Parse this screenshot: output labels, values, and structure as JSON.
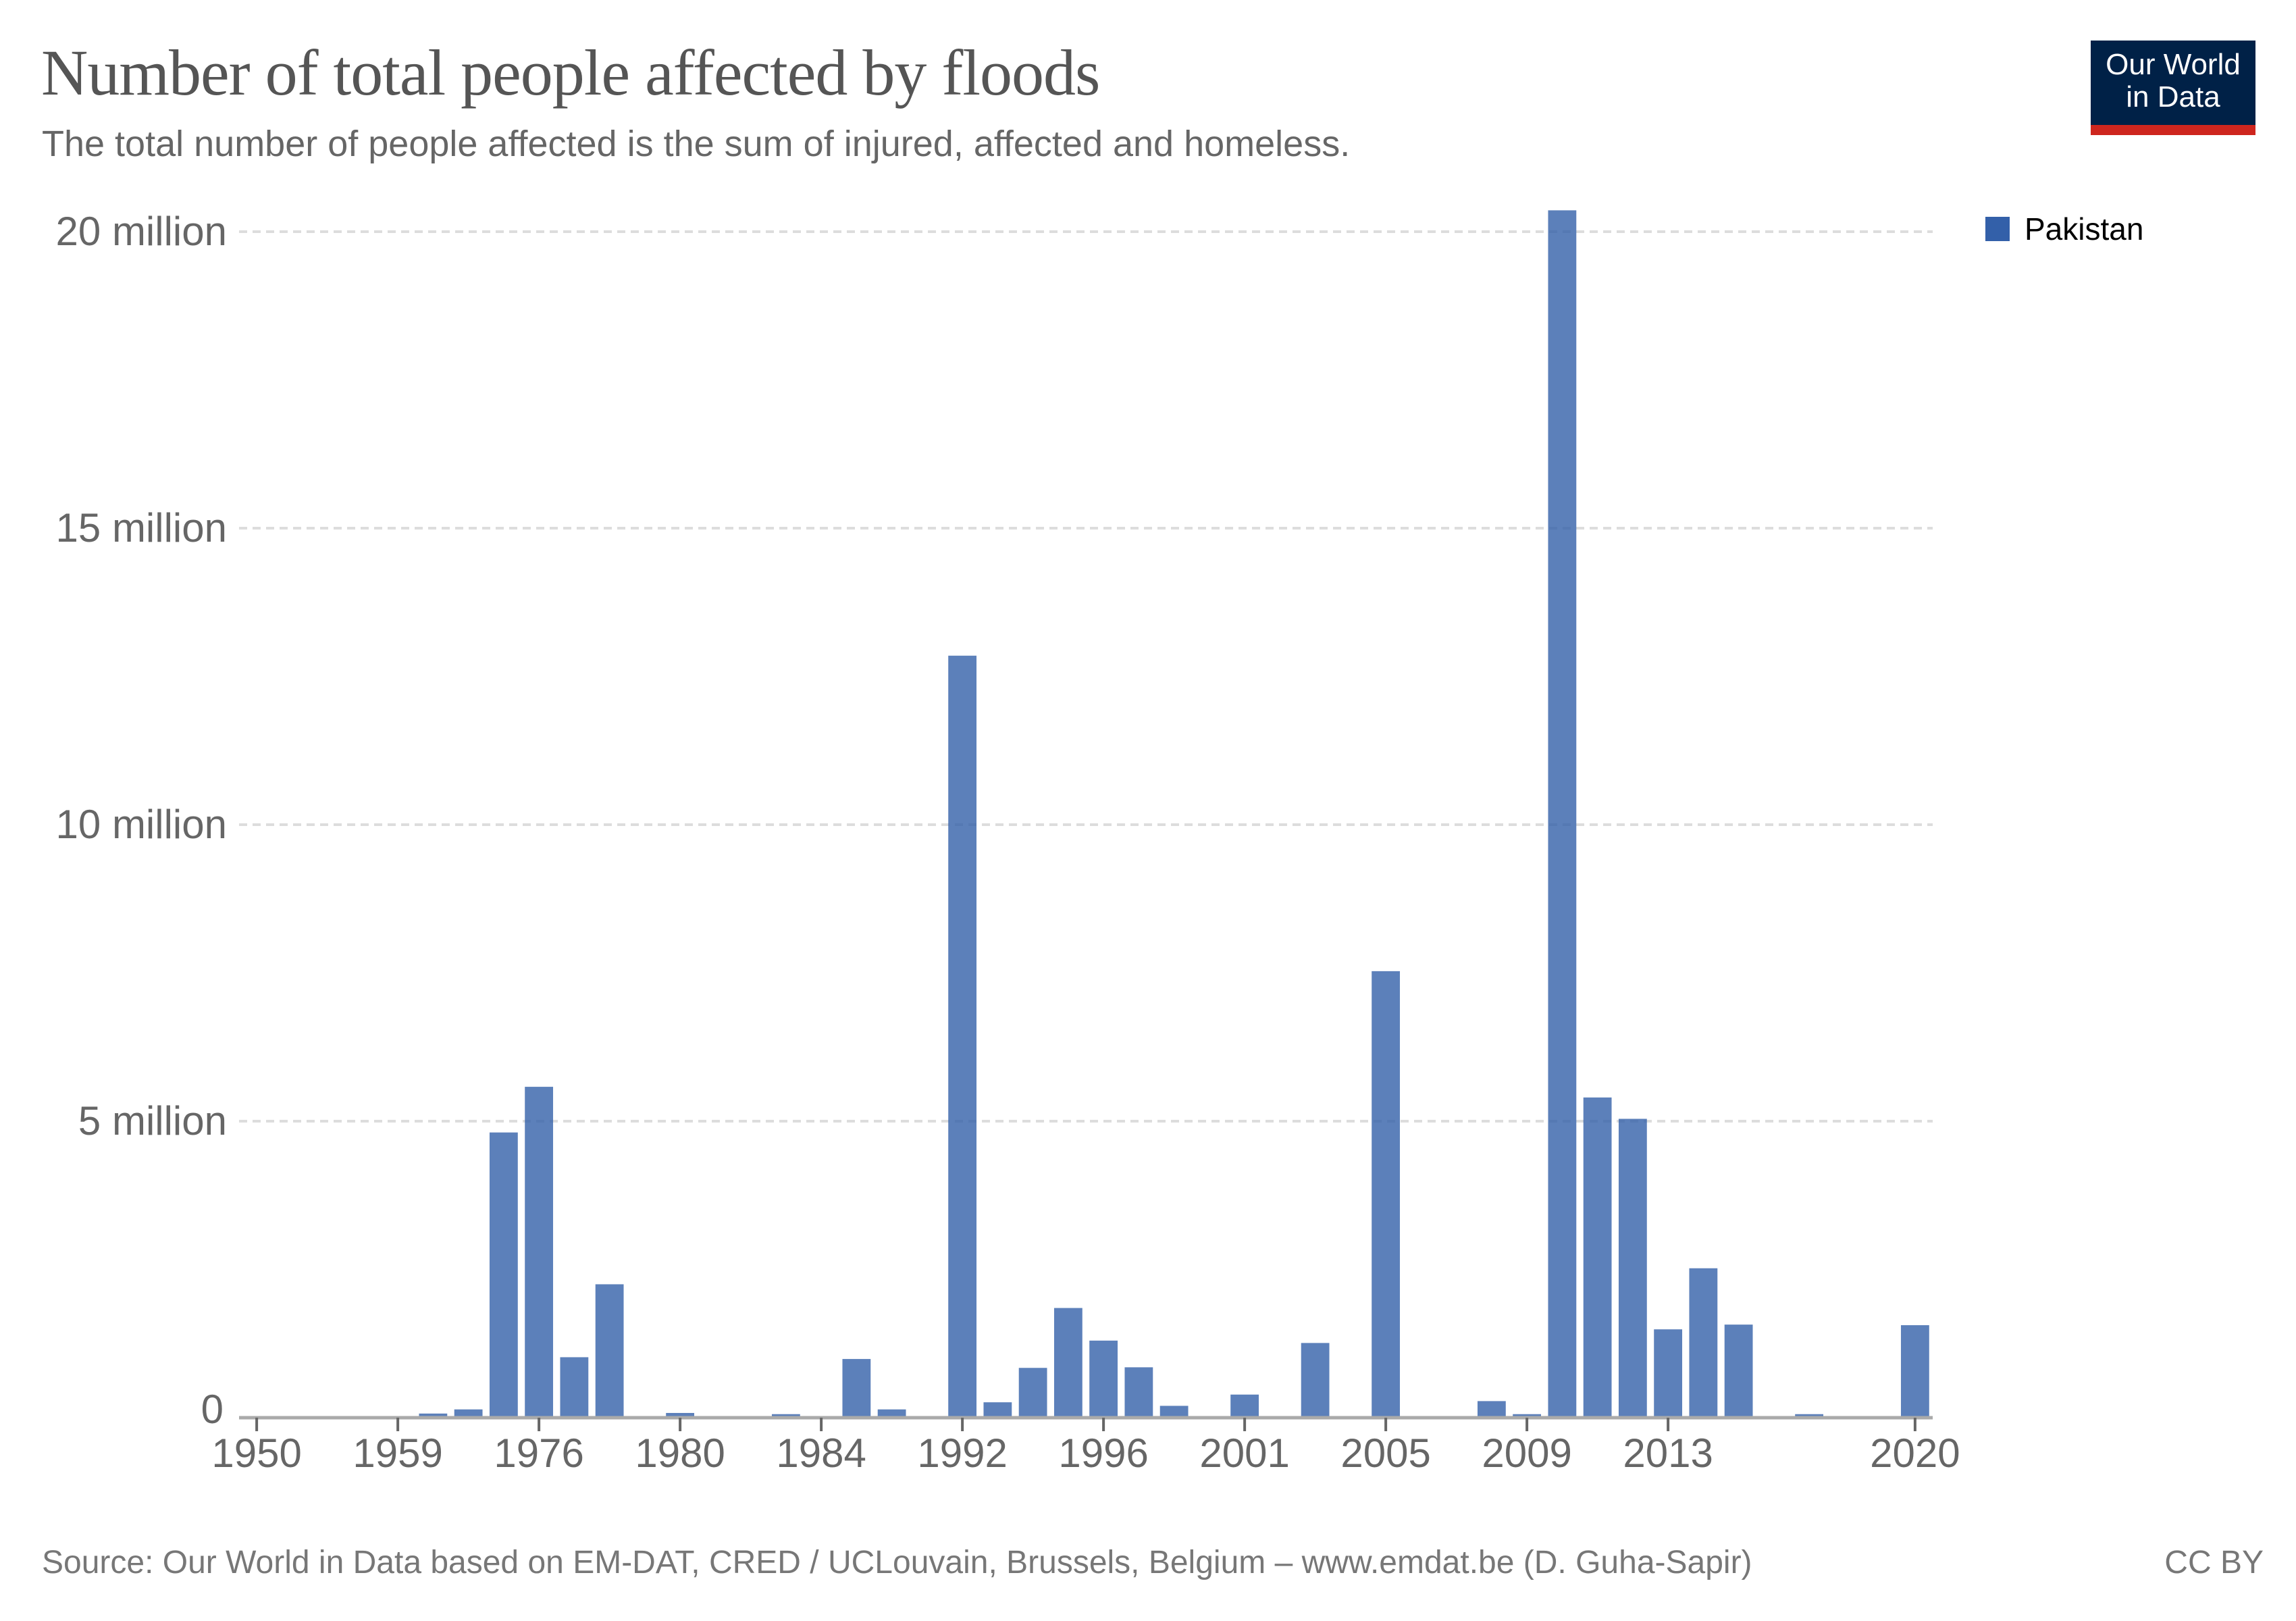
{
  "header": {
    "title": "Number of total people affected by floods",
    "subtitle": "The total number of people affected is the sum of injured, affected and homeless."
  },
  "logo": {
    "line1": "Our World",
    "line2": "in Data",
    "colors": {
      "background": "#002147",
      "stripe": "#ce261e"
    }
  },
  "footer": {
    "source": "Source: Our World in Data based on EM-DAT, CRED / UCLouvain, Brussels, Belgium – www.emdat.be (D. Guha-Sapir)",
    "license": "CC BY"
  },
  "chart_data": {
    "type": "bar",
    "title": "Number of total people affected by floods",
    "subtitle": "The total number of people affected is the sum of injured, affected and homeless.",
    "xlabel": "",
    "ylabel": "",
    "unit": "people",
    "ylim": [
      0,
      20000000
    ],
    "yticks": [
      {
        "value": 0,
        "label": "0"
      },
      {
        "value": 5000000,
        "label": "5 million"
      },
      {
        "value": 10000000,
        "label": "10 million"
      },
      {
        "value": 15000000,
        "label": "15 million"
      },
      {
        "value": 20000000,
        "label": "20 million"
      }
    ],
    "grid": "horizontal-dashed",
    "legend_position": "top-right",
    "xtick_labels": [
      "1950",
      "1959",
      "1976",
      "1980",
      "1984",
      "1992",
      "1996",
      "2001",
      "2005",
      "2009",
      "2013",
      "2020"
    ],
    "categories": [
      "1950",
      "1954",
      "1955",
      "1956",
      "1959",
      "1965",
      "1970",
      "1973",
      "1976",
      "1977",
      "1978",
      "1979",
      "1980",
      "1981",
      "1982",
      "1983",
      "1984",
      "1986",
      "1988",
      "1990",
      "1992",
      "1993",
      "1994",
      "1995",
      "1996",
      "1997",
      "1998",
      "1999",
      "2001",
      "2002",
      "2003",
      "2004",
      "2005",
      "2006",
      "2007",
      "2008",
      "2009",
      "2010",
      "2011",
      "2012",
      "2013",
      "2014",
      "2015",
      "2016",
      "2017",
      "2018",
      "2019",
      "2020"
    ],
    "series": [
      {
        "name": "Pakistan",
        "color": "#3360a9",
        "values": [
          0,
          0,
          0,
          0,
          0,
          70000,
          140000,
          4810000,
          5580000,
          1020000,
          2250000,
          0,
          80000,
          0,
          10000,
          60000,
          0,
          990000,
          140000,
          0,
          12850000,
          260000,
          840000,
          1850000,
          1300000,
          850000,
          200000,
          0,
          390000,
          0,
          1260000,
          0,
          7530000,
          0,
          0,
          280000,
          60000,
          20360000,
          5400000,
          5040000,
          1490000,
          2520000,
          1570000,
          10000,
          60000,
          0,
          0,
          1560000
        ]
      }
    ]
  }
}
